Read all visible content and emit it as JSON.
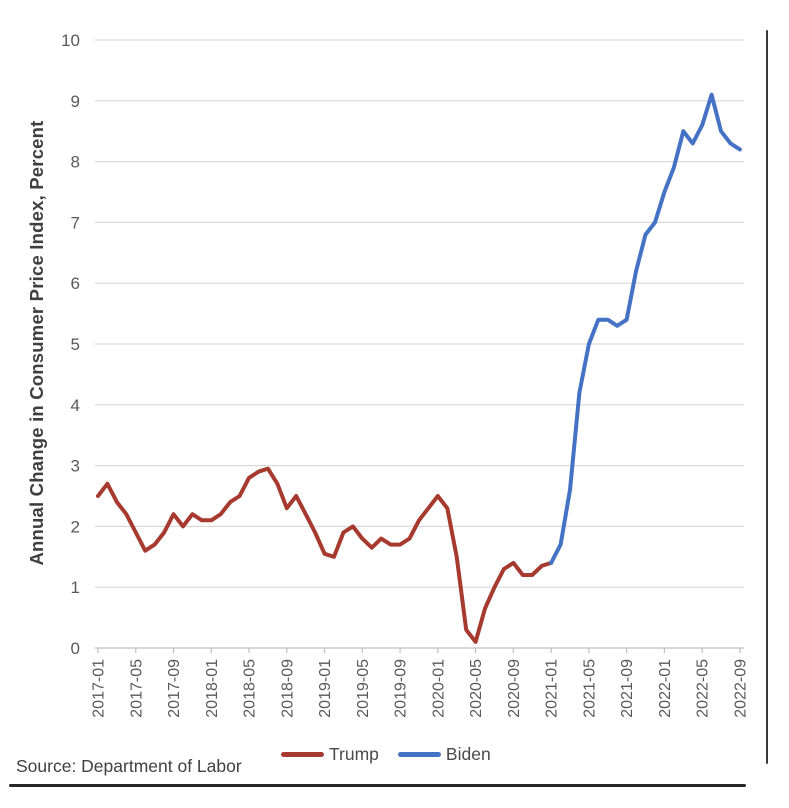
{
  "chart_data": {
    "type": "line",
    "title": "",
    "xlabel": "",
    "ylabel": "Annual Change in Consumer Price Index, Percent",
    "ylim": [
      0,
      10
    ],
    "yticks": [
      0,
      1,
      2,
      3,
      4,
      5,
      6,
      7,
      8,
      9,
      10
    ],
    "x_start": "2017-01",
    "x_end": "2022-09",
    "x_monthly_count": 69,
    "xtick_labels": [
      "2017-01",
      "2017-05",
      "2017-09",
      "2018-01",
      "2018-05",
      "2018-09",
      "2019-01",
      "2019-05",
      "2019-09",
      "2020-01",
      "2020-05",
      "2020-09",
      "2021-01",
      "2021-05",
      "2021-09",
      "2022-01",
      "2022-05",
      "2022-09"
    ],
    "xtick_month_step": 4,
    "grid": true,
    "legend_position": "bottom",
    "series": [
      {
        "name": "Trump",
        "color": "#A63A2F",
        "start_month_index": 0,
        "values": [
          2.5,
          2.7,
          2.4,
          2.2,
          1.9,
          1.6,
          1.7,
          1.9,
          2.2,
          2.0,
          2.2,
          2.1,
          2.1,
          2.2,
          2.4,
          2.5,
          2.8,
          2.9,
          2.95,
          2.7,
          2.3,
          2.5,
          2.2,
          1.9,
          1.55,
          1.5,
          1.9,
          2.0,
          1.8,
          1.65,
          1.8,
          1.7,
          1.7,
          1.8,
          2.1,
          2.3,
          2.5,
          2.3,
          1.5,
          0.3,
          0.1,
          0.65,
          1.0,
          1.3,
          1.4,
          1.2,
          1.2,
          1.35,
          1.4
        ]
      },
      {
        "name": "Biden",
        "color": "#4472C4",
        "start_month_index": 48,
        "values": [
          1.4,
          1.7,
          2.6,
          4.2,
          5.0,
          5.4,
          5.4,
          5.3,
          5.4,
          6.2,
          6.8,
          7.0,
          7.5,
          7.9,
          8.5,
          8.3,
          8.6,
          9.1,
          8.5,
          8.3,
          8.2
        ]
      }
    ]
  },
  "legend": {
    "items": [
      {
        "label": "Trump",
        "color": "#A63A2F"
      },
      {
        "label": "Biden",
        "color": "#4472C4"
      }
    ]
  },
  "source_note": "Source: Department of Labor",
  "colors": {
    "gridline": "#D9D9D9",
    "axis_line": "#BFBFBF",
    "tick_text": "#595959",
    "border": "#3a3a3a"
  }
}
